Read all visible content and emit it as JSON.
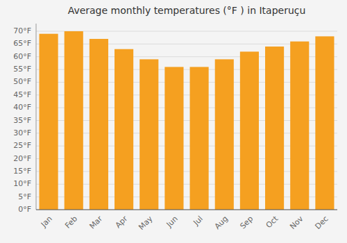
{
  "chart_data": {
    "type": "bar",
    "title": "Average monthly temperatures (°F ) in Itaperuçu",
    "categories": [
      "Jan",
      "Feb",
      "Mar",
      "Apr",
      "May",
      "Jun",
      "Jul",
      "Aug",
      "Sep",
      "Oct",
      "Nov",
      "Dec"
    ],
    "values": [
      69,
      70,
      67,
      63,
      59,
      56,
      56,
      59,
      62,
      64,
      66,
      68
    ],
    "color": "#F5A020",
    "ylim": [
      0,
      73
    ],
    "yticks": [
      {
        "value": 0,
        "label": "0°F"
      },
      {
        "value": 5,
        "label": "5°F"
      },
      {
        "value": 10,
        "label": "10°F"
      },
      {
        "value": 15,
        "label": "15°F"
      },
      {
        "value": 20,
        "label": "20°F"
      },
      {
        "value": 25,
        "label": "25°F"
      },
      {
        "value": 30,
        "label": "30°F"
      },
      {
        "value": 35,
        "label": "35°F"
      },
      {
        "value": 40,
        "label": "40°F"
      },
      {
        "value": 45,
        "label": "45°F"
      },
      {
        "value": 50,
        "label": "50°F"
      },
      {
        "value": 55,
        "label": "55°F"
      },
      {
        "value": 60,
        "label": "60°F"
      },
      {
        "value": 65,
        "label": "65°F"
      },
      {
        "value": 70,
        "label": "70°F"
      }
    ],
    "grid": true
  }
}
